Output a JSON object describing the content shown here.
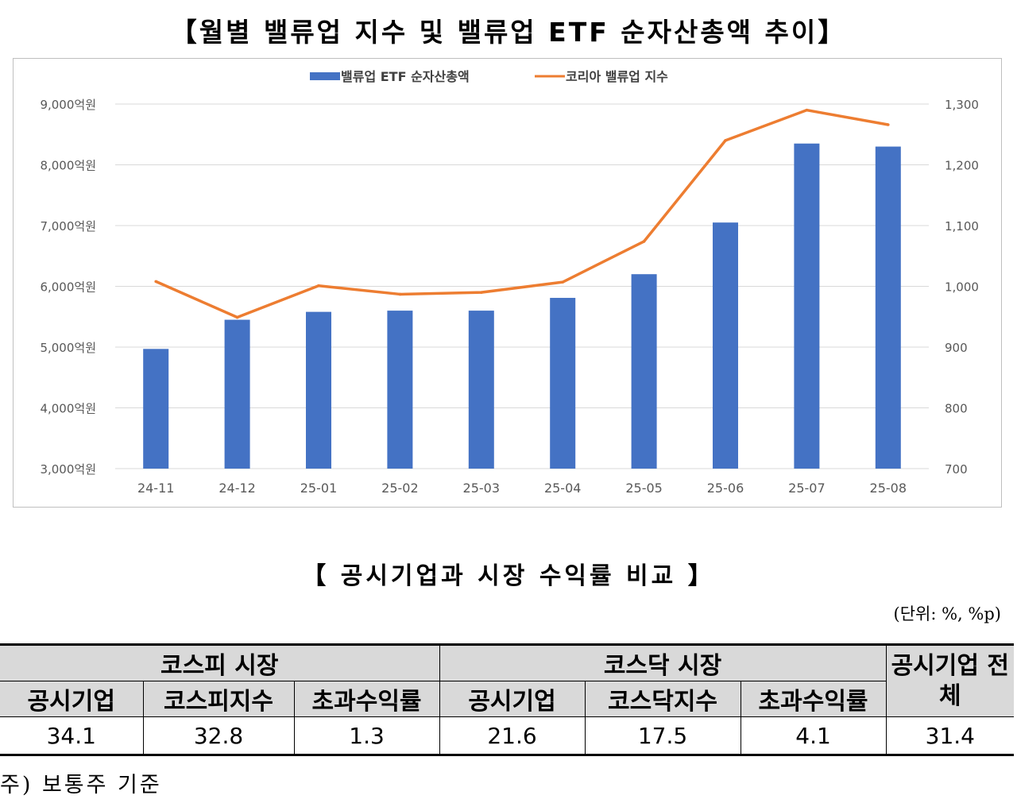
{
  "chart_title": "【월별 밸류업 지수 및 밸류업 ETF 순자산총액 추이】",
  "chart_data": {
    "type": "bar",
    "title": "【월별 밸류업 지수 및 밸류업 ETF 순자산총액 추이】",
    "categories": [
      "24-11",
      "24-12",
      "25-01",
      "25-02",
      "25-03",
      "25-04",
      "25-05",
      "25-06",
      "25-07",
      "25-08"
    ],
    "series": [
      {
        "name": "밸류업 ETF 순자산총액",
        "type": "bar",
        "axis": "left",
        "color": "#4472c4",
        "values": [
          4970,
          5450,
          5580,
          5600,
          5600,
          5810,
          6200,
          7050,
          8350,
          8300
        ]
      },
      {
        "name": "코리아 밸류업 지수",
        "type": "line",
        "axis": "right",
        "color": "#ed7d31",
        "values": [
          1008,
          949,
          1001,
          987,
          990,
          1007,
          1074,
          1240,
          1290,
          1266
        ]
      }
    ],
    "y_left": {
      "min": 3000,
      "max": 9000,
      "ticks": [
        "3,000억원",
        "4,000억원",
        "5,000억원",
        "6,000억원",
        "7,000억원",
        "8,000억원",
        "9,000억원"
      ]
    },
    "y_right": {
      "min": 700,
      "max": 1300,
      "ticks": [
        "700",
        "800",
        "900",
        "1,000",
        "1,100",
        "1,200",
        "1,300"
      ]
    },
    "grid": "horizontal",
    "legend": "top-center"
  },
  "table": {
    "title": "【 공시기업과 시장 수익률 비교 】",
    "unit": "(단위: %, %p)",
    "groups": {
      "kospi": "코스피 시장",
      "kosdaq": "코스닥 시장",
      "all": "공시기업 전체"
    },
    "columns": [
      "공시기업",
      "코스피지수",
      "초과수익률",
      "공시기업",
      "코스닥지수",
      "초과수익률"
    ],
    "values": [
      "34.1",
      "32.8",
      "1.3",
      "21.6",
      "17.5",
      "4.1",
      "31.4"
    ]
  },
  "footnote": "주) 보통주 기준"
}
